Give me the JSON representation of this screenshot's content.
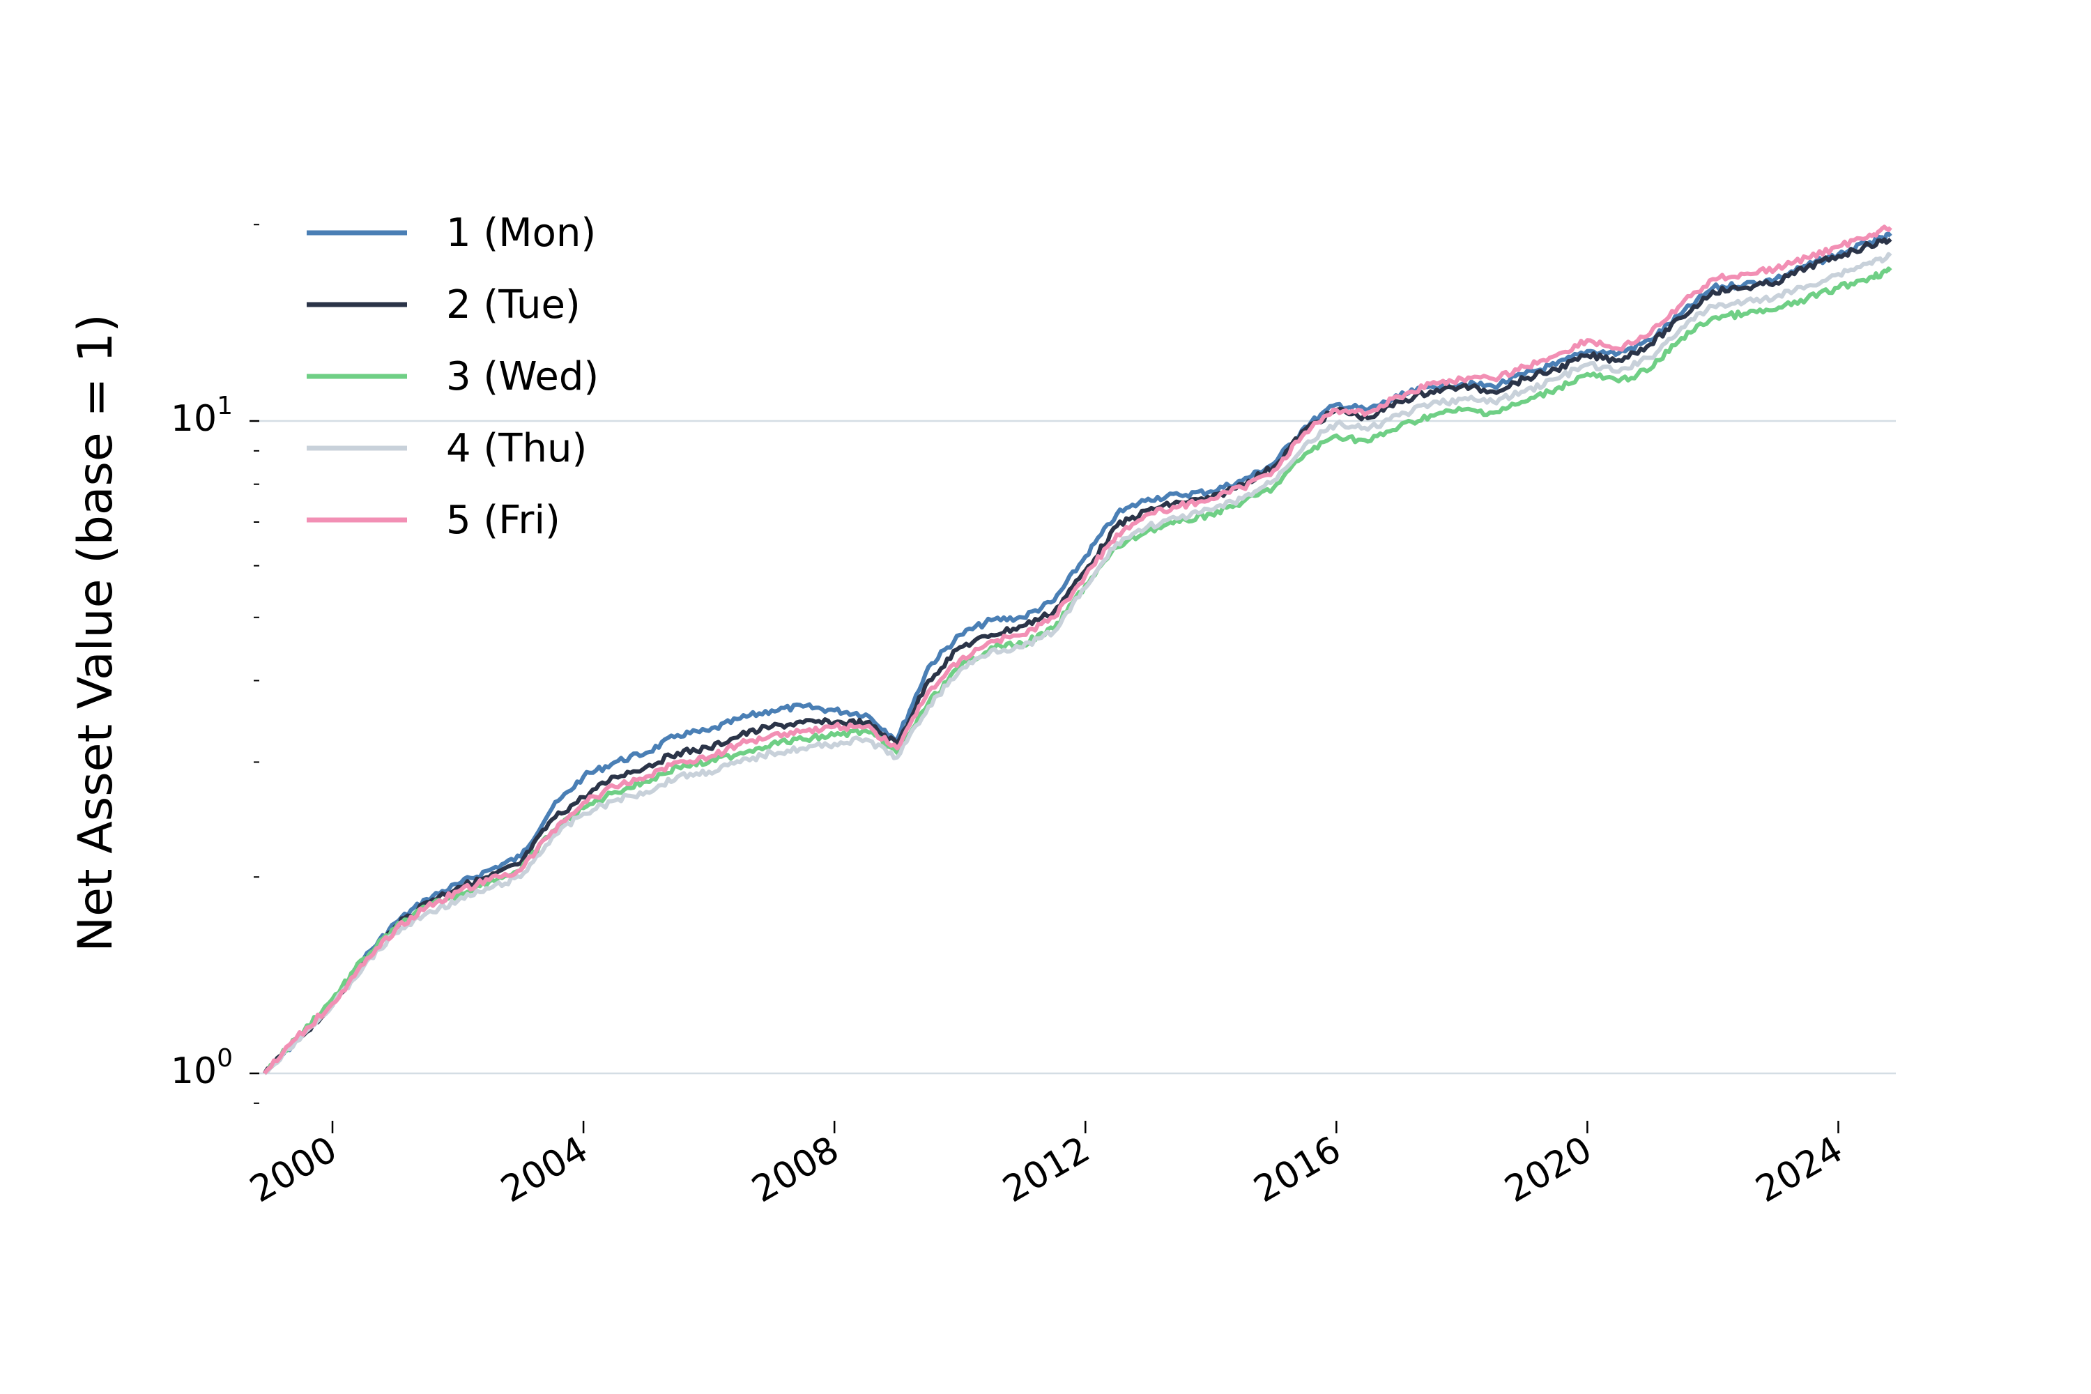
{
  "chart_data": {
    "type": "line",
    "title": "",
    "xlabel": "",
    "ylabel": "Net Asset Value (base = 1)",
    "yscale": "log",
    "ylim": [
      0.9,
      22
    ],
    "xlim": [
      "1998-11-01",
      "2024-12-01"
    ],
    "x_ticks": [
      "2000",
      "2004",
      "2008",
      "2012",
      "2016",
      "2020",
      "2024"
    ],
    "y_ticks": [
      {
        "value": 1,
        "base": "10",
        "exp": "0"
      },
      {
        "value": 10,
        "base": "10",
        "exp": "1"
      }
    ],
    "grid": "y-major",
    "legend": "top-left",
    "dates": [
      "1998-12",
      "1999-06",
      "2000-01",
      "2000-07",
      "2001-01",
      "2001-07",
      "2002-01",
      "2002-07",
      "2003-01",
      "2003-07",
      "2004-01",
      "2004-07",
      "2005-01",
      "2005-07",
      "2006-01",
      "2006-07",
      "2007-01",
      "2007-07",
      "2008-01",
      "2008-07",
      "2009-01",
      "2009-07",
      "2010-01",
      "2010-07",
      "2011-01",
      "2011-07",
      "2012-01",
      "2012-07",
      "2013-01",
      "2013-07",
      "2014-01",
      "2014-07",
      "2015-01",
      "2015-07",
      "2016-01",
      "2016-07",
      "2017-01",
      "2017-07",
      "2018-01",
      "2018-07",
      "2019-01",
      "2019-07",
      "2020-01",
      "2020-07",
      "2021-01",
      "2021-07",
      "2022-01",
      "2022-07",
      "2023-01",
      "2023-07",
      "2024-01",
      "2024-07",
      "2024-11"
    ],
    "series": [
      {
        "name": "1 (Mon)",
        "color": "#4a7fb5",
        "values": [
          1.0,
          1.12,
          1.28,
          1.5,
          1.7,
          1.85,
          1.95,
          2.05,
          2.15,
          2.55,
          2.85,
          3.0,
          3.1,
          3.3,
          3.35,
          3.5,
          3.6,
          3.65,
          3.6,
          3.55,
          3.25,
          4.2,
          4.7,
          4.95,
          5.0,
          5.3,
          6.2,
          7.2,
          7.6,
          7.7,
          7.8,
          8.1,
          8.6,
          9.8,
          10.6,
          10.4,
          10.9,
          11.3,
          11.4,
          11.3,
          11.8,
          12.2,
          12.8,
          12.7,
          13.3,
          14.6,
          16.0,
          16.2,
          16.5,
          17.3,
          18.0,
          18.8,
          19.2
        ]
      },
      {
        "name": "2 (Tue)",
        "color": "#2b3448",
        "values": [
          1.0,
          1.12,
          1.27,
          1.48,
          1.68,
          1.83,
          1.93,
          2.0,
          2.1,
          2.45,
          2.65,
          2.85,
          2.95,
          3.1,
          3.15,
          3.3,
          3.4,
          3.45,
          3.45,
          3.45,
          3.2,
          4.0,
          4.5,
          4.7,
          4.85,
          5.1,
          5.9,
          6.9,
          7.3,
          7.5,
          7.6,
          8.0,
          8.5,
          9.7,
          10.4,
          10.1,
          10.7,
          11.1,
          11.3,
          11.1,
          11.6,
          12.0,
          12.6,
          12.4,
          13.1,
          14.4,
          15.8,
          16.0,
          16.3,
          17.2,
          17.9,
          18.6,
          19.0
        ]
      },
      {
        "name": "3 (Wed)",
        "color": "#6fcf85",
        "values": [
          1.0,
          1.13,
          1.3,
          1.5,
          1.67,
          1.8,
          1.88,
          1.97,
          2.05,
          2.35,
          2.55,
          2.7,
          2.8,
          2.95,
          3.0,
          3.1,
          3.2,
          3.25,
          3.3,
          3.35,
          3.1,
          3.7,
          4.2,
          4.5,
          4.55,
          4.8,
          5.6,
          6.4,
          6.8,
          7.0,
          7.2,
          7.5,
          7.9,
          8.9,
          9.5,
          9.3,
          9.8,
          10.2,
          10.4,
          10.3,
          10.7,
          11.2,
          11.8,
          11.5,
          12.0,
          13.4,
          14.4,
          14.6,
          14.8,
          15.4,
          16.0,
          16.6,
          17.0
        ]
      },
      {
        "name": "4 (Thu)",
        "color": "#c8d1da",
        "values": [
          1.0,
          1.12,
          1.27,
          1.46,
          1.64,
          1.76,
          1.84,
          1.92,
          2.0,
          2.3,
          2.5,
          2.62,
          2.7,
          2.85,
          2.9,
          3.0,
          3.1,
          3.15,
          3.2,
          3.25,
          3.05,
          3.65,
          4.15,
          4.45,
          4.5,
          4.75,
          5.55,
          6.5,
          6.9,
          7.1,
          7.3,
          7.6,
          8.1,
          9.2,
          9.9,
          9.7,
          10.2,
          10.6,
          10.8,
          10.7,
          11.1,
          11.6,
          12.2,
          11.9,
          12.5,
          13.9,
          15.0,
          15.2,
          15.5,
          16.1,
          16.8,
          17.5,
          17.9
        ]
      },
      {
        "name": "5 (Fri)",
        "color": "#f28fb4",
        "values": [
          1.0,
          1.13,
          1.28,
          1.47,
          1.66,
          1.8,
          1.9,
          1.98,
          2.05,
          2.35,
          2.6,
          2.75,
          2.85,
          3.0,
          3.05,
          3.2,
          3.3,
          3.35,
          3.4,
          3.4,
          3.15,
          3.85,
          4.3,
          4.6,
          4.7,
          5.0,
          5.8,
          6.7,
          7.2,
          7.4,
          7.6,
          7.9,
          8.4,
          9.6,
          10.4,
          10.3,
          10.9,
          11.4,
          11.6,
          11.6,
          12.1,
          12.6,
          13.3,
          12.9,
          13.6,
          15.1,
          16.5,
          16.8,
          17.1,
          17.8,
          18.5,
          19.3,
          19.8
        ]
      }
    ]
  }
}
